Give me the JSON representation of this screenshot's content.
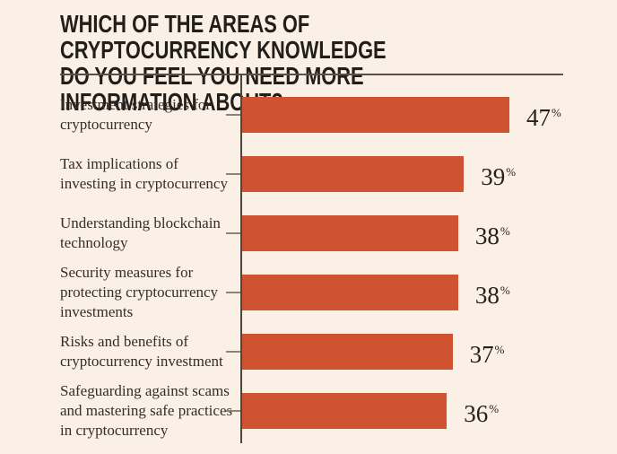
{
  "header": {
    "title": "WHICH OF THE AREAS OF CRYPTOCURRENCY KNOWLEDGE\nDO YOU FEEL YOU NEED MORE INFORMATION ABOUT?"
  },
  "chart_data": {
    "type": "bar",
    "orientation": "horizontal",
    "title": "WHICH OF THE AREAS OF CRYPTOCURRENCY KNOWLEDGE DO YOU FEEL YOU NEED MORE INFORMATION ABOUT?",
    "categories": [
      "Investment strategies for\ncryptocurrency",
      "Tax implications of\ninvesting in cryptocurrency",
      "Understanding blockchain\ntechnology",
      "Security measures for\nprotecting cryptocurrency\ninvestments",
      "Risks and benefits of\ncryptocurrency investment",
      "Safeguarding against scams\nand mastering safe practices\nin cryptocurrency"
    ],
    "values": [
      47,
      39,
      38,
      38,
      37,
      36
    ],
    "value_suffix": "%",
    "xlim": [
      0,
      50
    ],
    "xlabel": "",
    "ylabel": "",
    "grid": false,
    "legend": false,
    "colors": {
      "background": "#fbf0e5",
      "bar": "#d05331",
      "axis": "#4c463f",
      "tick": "#8d8478",
      "title_text": "#221e19",
      "category_text": "#332e28",
      "value_text": "#26211b"
    }
  }
}
